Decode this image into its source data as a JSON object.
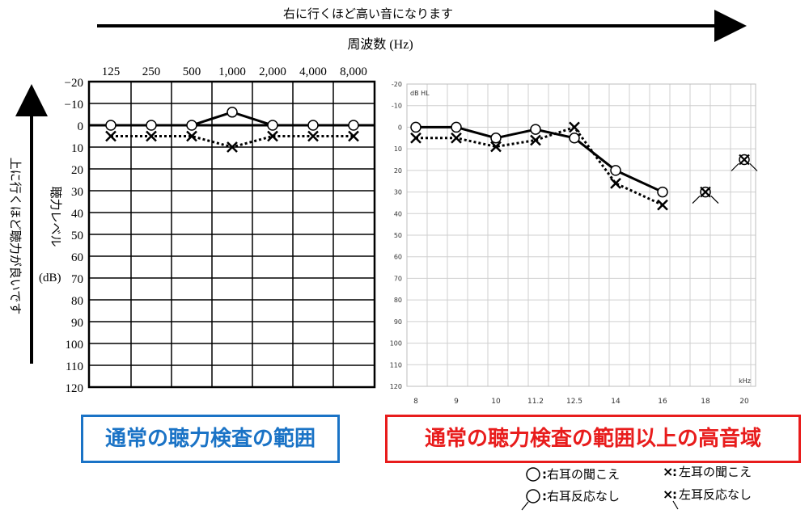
{
  "top_caption": "右に行くほど高い音になります",
  "freq_axis_title": "周波数 (Hz)",
  "left_caption": "上に行くほど聴力が良いです",
  "ylabel_vertical": "聴力レベル",
  "ylabel_unit": "(dB)",
  "labels": {
    "standard_range": "通常の聴力検査の範囲",
    "high_range": "通常の聴力検査の範囲以上の高音域"
  },
  "legend": {
    "right_ear_heard": "右耳の聞こえ",
    "left_ear_heard": "左耳の聞こえ",
    "right_ear_no_response": "右耳反応なし",
    "left_ear_no_response": "左耳反応なし",
    "right_mark": "○:",
    "left_mark": "×:"
  },
  "colors": {
    "standard_border": "#1a73c6",
    "high_border": "#e81c1c",
    "grid_standard": "#000000",
    "grid_high": "#c8c8c8"
  },
  "chart_data": [
    {
      "type": "line",
      "categories": [
        "125",
        "250",
        "500",
        "1,000",
        "2,000",
        "4,000",
        "8,000"
      ],
      "ylim": [
        -20,
        120
      ],
      "y_ticks": [
        "−20",
        "−10",
        "0",
        "10",
        "20",
        "30",
        "40",
        "50",
        "60",
        "70",
        "80",
        "90",
        "100",
        "110",
        "120"
      ],
      "y_inverted": true,
      "grid": true,
      "series": [
        {
          "values": [
            0,
            0,
            0,
            -6,
            0,
            0,
            0
          ],
          "marker": "circle",
          "line": "solid"
        },
        {
          "values": [
            5,
            5,
            5,
            10,
            5,
            5,
            5
          ],
          "marker": "x",
          "line": "dotted"
        }
      ]
    },
    {
      "type": "line",
      "axis_unit_y": "dB HL",
      "axis_unit_x": "kHz",
      "categories": [
        "8",
        "9",
        "10",
        "11.2",
        "12.5",
        "14",
        "16",
        "18",
        "20"
      ],
      "ylim": [
        -20,
        120
      ],
      "y_ticks": [
        "-20",
        "-10",
        "0",
        "10",
        "20",
        "30",
        "40",
        "50",
        "60",
        "70",
        "80",
        "90",
        "100",
        "110",
        "120"
      ],
      "y_inverted": true,
      "grid": true,
      "series": [
        {
          "values": [
            0,
            0,
            5,
            1,
            5,
            20,
            30,
            null,
            null
          ],
          "marker": "circle",
          "line": "solid"
        },
        {
          "values": [
            5,
            5,
            9,
            6,
            0,
            26,
            36,
            null,
            null
          ],
          "marker": "x",
          "line": "dotted"
        }
      ],
      "no_response": [
        {
          "category": "18",
          "value": 30
        },
        {
          "category": "20",
          "value": 15
        }
      ]
    }
  ]
}
